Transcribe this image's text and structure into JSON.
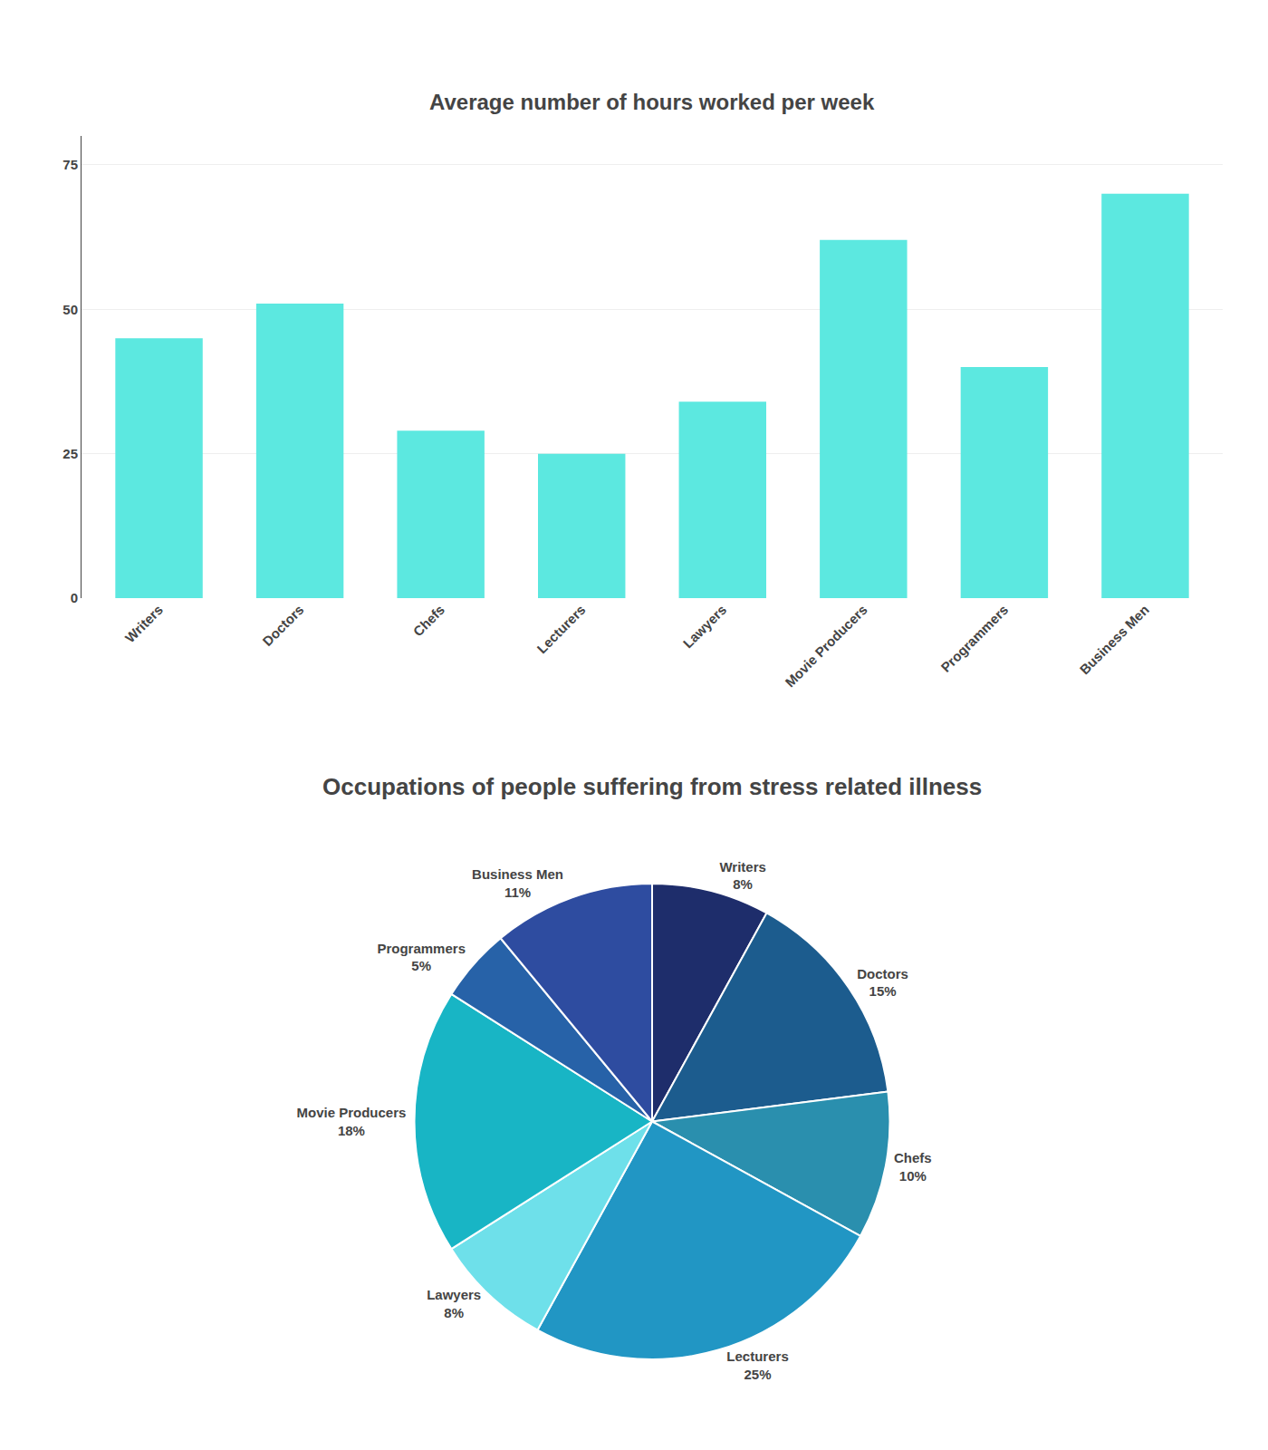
{
  "chart_data": [
    {
      "type": "bar",
      "title": "Average number of hours worked per week",
      "categories": [
        "Writers",
        "Doctors",
        "Chefs",
        "Lecturers",
        "Lawyers",
        "Movie Producers",
        "Programmers",
        "Business Men"
      ],
      "values": [
        45,
        51,
        29,
        25,
        34,
        62,
        40,
        70
      ],
      "color": "#5CE8E0",
      "ylim": [
        0,
        80
      ],
      "yticks": [
        0,
        25,
        50,
        75
      ],
      "grid": true
    },
    {
      "type": "pie",
      "title": "Occupations of people suffering from stress related illness",
      "categories": [
        "Writers",
        "Doctors",
        "Chefs",
        "Lecturers",
        "Lawyers",
        "Movie Producers",
        "Programmers",
        "Business Men"
      ],
      "values": [
        8,
        15,
        10,
        25,
        8,
        18,
        5,
        11
      ],
      "value_labels": [
        "8%",
        "15%",
        "10%",
        "25%",
        "8%",
        "18%",
        "5%",
        "11%"
      ],
      "colors": [
        "#1e2d6b",
        "#1c5c8e",
        "#2a8fae",
        "#2196c4",
        "#6ee0ea",
        "#18b5c5",
        "#2762a8",
        "#2e4ca0"
      ],
      "data_labels": true
    }
  ]
}
